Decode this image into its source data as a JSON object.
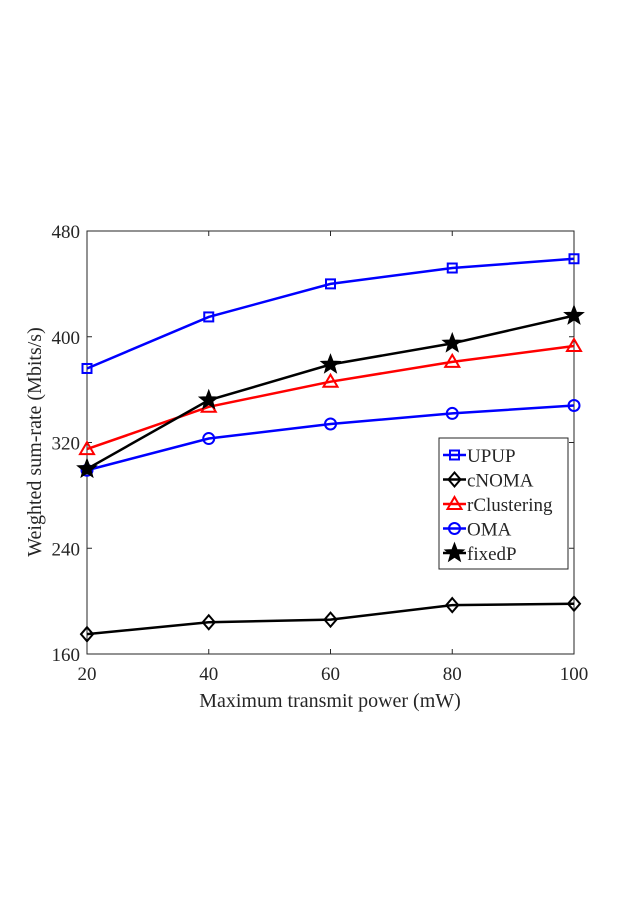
{
  "chart_data": {
    "type": "line",
    "title": "",
    "xlabel": "Maximum transmit power (mW)",
    "ylabel": "Weighted sum-rate (Mbits/s)",
    "x": [
      20,
      40,
      60,
      80,
      100
    ],
    "xlim": [
      20,
      100
    ],
    "ylim": [
      160,
      480
    ],
    "xticks": [
      "20",
      "40",
      "60",
      "80",
      "100"
    ],
    "yticks": [
      "160",
      "240",
      "320",
      "400",
      "480"
    ],
    "grid": false,
    "legend_position": "right",
    "series": [
      {
        "name": "UPUP",
        "values": [
          376,
          415,
          440,
          452,
          459
        ],
        "color": "#0000ff",
        "marker": "square"
      },
      {
        "name": "cNOMA",
        "values": [
          175,
          184,
          186,
          197,
          198
        ],
        "color": "#000000",
        "marker": "diamond"
      },
      {
        "name": "rClustering",
        "values": [
          315,
          347,
          366,
          381,
          393
        ],
        "color": "#ff0000",
        "marker": "triangle"
      },
      {
        "name": "OMA",
        "values": [
          299,
          323,
          334,
          342,
          348
        ],
        "color": "#0000ff",
        "marker": "circle"
      },
      {
        "name": "fixedP",
        "values": [
          300,
          352,
          379,
          395,
          416
        ],
        "color": "#000000",
        "marker": "star"
      }
    ]
  }
}
